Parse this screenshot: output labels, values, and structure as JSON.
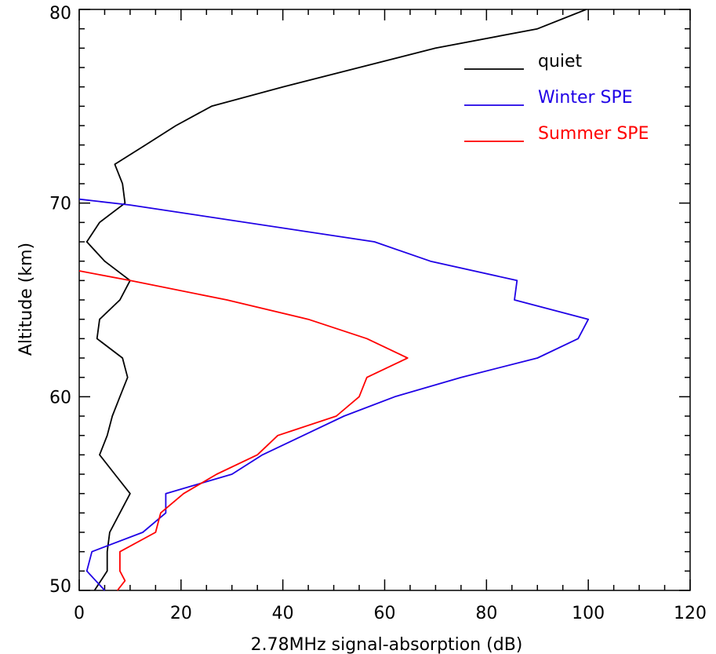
{
  "chart_data": {
    "type": "line",
    "title": "",
    "xlabel": "2.78MHz signal-absorption (dB)",
    "ylabel": "Altitude (km)",
    "xlim": [
      0,
      120
    ],
    "ylim": [
      50,
      80
    ],
    "x_ticks": [
      0,
      20,
      40,
      60,
      80,
      100,
      120
    ],
    "y_ticks": [
      50,
      60,
      70,
      80
    ],
    "grid": false,
    "legend_position": "top-right",
    "series": [
      {
        "name": "quiet",
        "color": "#000000",
        "points": [
          [
            99.6,
            80
          ],
          [
            90,
            79
          ],
          [
            70,
            78
          ],
          [
            55,
            77
          ],
          [
            40,
            76
          ],
          [
            26,
            75
          ],
          [
            19,
            74
          ],
          [
            13,
            73
          ],
          [
            7,
            72
          ],
          [
            8.5,
            71
          ],
          [
            9,
            70
          ],
          [
            4,
            69
          ],
          [
            1.5,
            68
          ],
          [
            5,
            67
          ],
          [
            10,
            66
          ],
          [
            8,
            65
          ],
          [
            4,
            64
          ],
          [
            3.5,
            63
          ],
          [
            8.5,
            62
          ],
          [
            9.5,
            61
          ],
          [
            8,
            60
          ],
          [
            6.5,
            59
          ],
          [
            5.5,
            58
          ],
          [
            4,
            57
          ],
          [
            7,
            56
          ],
          [
            10,
            55
          ],
          [
            8,
            54
          ],
          [
            6,
            53
          ],
          [
            5.5,
            52
          ],
          [
            5.5,
            51
          ],
          [
            3,
            50
          ]
        ]
      },
      {
        "name": "Winter SPE",
        "color": "#1f00e6",
        "points": [
          [
            0,
            70.2
          ],
          [
            10,
            69.9
          ],
          [
            58,
            68
          ],
          [
            69,
            67
          ],
          [
            86,
            66
          ],
          [
            85.5,
            65
          ],
          [
            100,
            64
          ],
          [
            98,
            63
          ],
          [
            90,
            62
          ],
          [
            75,
            61
          ],
          [
            62,
            60
          ],
          [
            52,
            59
          ],
          [
            44,
            58
          ],
          [
            36,
            57
          ],
          [
            30,
            56
          ],
          [
            17,
            55
          ],
          [
            17,
            54
          ],
          [
            12.5,
            53
          ],
          [
            2.5,
            52
          ],
          [
            1.5,
            51
          ],
          [
            5,
            50
          ]
        ]
      },
      {
        "name": "Summer SPE",
        "color": "#ff0000",
        "points": [
          [
            0,
            66.5
          ],
          [
            10,
            66
          ],
          [
            29,
            65
          ],
          [
            45,
            64
          ],
          [
            56.5,
            63
          ],
          [
            64.5,
            62
          ],
          [
            56.5,
            61
          ],
          [
            55,
            60
          ],
          [
            50.5,
            59
          ],
          [
            39,
            58
          ],
          [
            35,
            57
          ],
          [
            27,
            56
          ],
          [
            20.5,
            55
          ],
          [
            16,
            54
          ],
          [
            15,
            53
          ],
          [
            8,
            52
          ],
          [
            8,
            51
          ],
          [
            9,
            50.5
          ],
          [
            7.5,
            50
          ]
        ]
      }
    ],
    "legend": [
      {
        "label": "quiet",
        "color": "#000000"
      },
      {
        "label": "Winter SPE",
        "color": "#1f00e6"
      },
      {
        "label": "Summer SPE",
        "color": "#ff0000"
      }
    ]
  }
}
